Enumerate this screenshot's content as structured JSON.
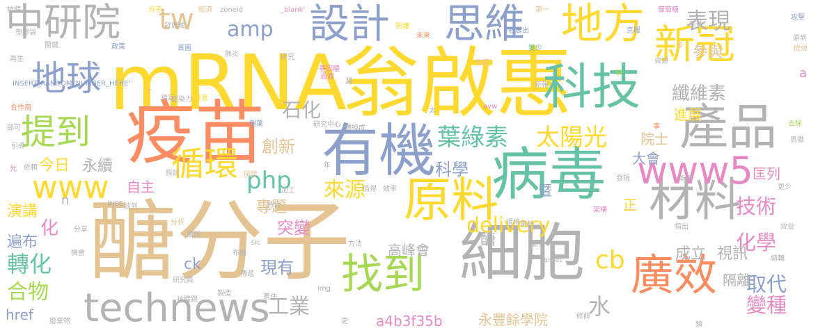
{
  "palette": {
    "peach": "#E5C494",
    "yellow": "#FFD92F",
    "green": "#A6D854",
    "teal": "#66C2A5",
    "gray": "#B3B3B3",
    "blue": "#8DA0CB",
    "pink": "#E78AC3",
    "orange": "#FC8D62"
  },
  "words": [
    {
      "text": "醣分子",
      "color": "peach"
    },
    {
      "text": "翁啟惠",
      "color": "yellow"
    },
    {
      "text": "mRNA",
      "color": "yellow"
    },
    {
      "text": "疫苗",
      "color": "orange"
    },
    {
      "text": "細胞",
      "color": "gray"
    },
    {
      "text": "有機",
      "color": "blue"
    },
    {
      "text": "病毒",
      "color": "teal"
    },
    {
      "text": "科技",
      "color": "teal"
    },
    {
      "text": "產品",
      "color": "gray"
    },
    {
      "text": "原料",
      "color": "yellow"
    },
    {
      "text": "找到",
      "color": "green"
    },
    {
      "text": "設計",
      "color": "blue"
    },
    {
      "text": "思維",
      "color": "blue"
    },
    {
      "text": "地方",
      "color": "yellow"
    },
    {
      "text": "廣效",
      "color": "orange"
    },
    {
      "text": "材料",
      "color": "gray"
    },
    {
      "text": "新冠",
      "color": "yellow"
    },
    {
      "text": "technews",
      "color": "gray"
    },
    {
      "text": "中研院",
      "color": "gray"
    },
    {
      "text": "www5",
      "color": "pink"
    },
    {
      "text": "地球",
      "color": "blue"
    },
    {
      "text": "提到",
      "color": "green"
    },
    {
      "text": "循環",
      "color": "yellow"
    },
    {
      "text": "www",
      "color": "yellow"
    },
    {
      "text": "tw",
      "color": "peach"
    },
    {
      "text": "葉綠素",
      "color": "teal"
    },
    {
      "text": "太陽光",
      "color": "yellow"
    },
    {
      "text": "表現",
      "color": "gray"
    },
    {
      "text": "石化",
      "color": "gray"
    },
    {
      "text": "纖維素",
      "color": "gray"
    },
    {
      "text": "amp",
      "color": "blue"
    },
    {
      "text": "參與",
      "color": "peach"
    },
    {
      "text": "php",
      "color": "teal"
    },
    {
      "text": "delivery",
      "color": "yellow"
    },
    {
      "text": "cb",
      "color": "yellow"
    },
    {
      "text": "技術",
      "color": "pink"
    },
    {
      "text": "化學",
      "color": "pink"
    },
    {
      "text": "取代",
      "color": "blue"
    },
    {
      "text": "變種",
      "color": "pink"
    },
    {
      "text": "工業",
      "color": "gray"
    },
    {
      "text": "水",
      "color": "gray"
    },
    {
      "text": "a4b3f35b",
      "color": "pink"
    },
    {
      "text": "永豐餘學院",
      "color": "peach"
    },
    {
      "text": "高峰會",
      "color": "gray"
    },
    {
      "text": "現有",
      "color": "blue"
    },
    {
      "text": "突變",
      "color": "pink"
    },
    {
      "text": "專題",
      "color": "peach"
    },
    {
      "text": "來源",
      "color": "yellow"
    },
    {
      "text": "自主",
      "color": "pink"
    },
    {
      "text": "創新",
      "color": "peach"
    },
    {
      "text": "科學",
      "color": "blue"
    },
    {
      "text": "轉化",
      "color": "teal"
    },
    {
      "text": "合物",
      "color": "green"
    },
    {
      "text": "遍布",
      "color": "blue"
    },
    {
      "text": "演講",
      "color": "yellow"
    },
    {
      "text": "化",
      "color": "pink"
    },
    {
      "text": "今日",
      "color": "yellow"
    },
    {
      "text": "永續",
      "color": "gray"
    },
    {
      "text": "href",
      "color": "blue"
    },
    {
      "text": "ck",
      "color": "blue"
    },
    {
      "text": "成立",
      "color": "gray"
    },
    {
      "text": "視訊",
      "color": "gray"
    },
    {
      "text": "隔離",
      "color": "gray"
    },
    {
      "text": "進展",
      "color": "yellow"
    },
    {
      "text": "院士",
      "color": "peach"
    },
    {
      "text": "大會",
      "color": "blue"
    },
    {
      "text": "匡列",
      "color": "pink"
    },
    {
      "text": "醣",
      "color": "gray"
    },
    {
      "text": "暨",
      "color": "blue"
    },
    {
      "text": "正",
      "color": "yellow"
    },
    {
      "text": "n",
      "color": "gray"
    },
    {
      "text": "a",
      "color": "pink"
    },
    {
      "text": "分子",
      "color": "yellow"
    },
    {
      "text": "經濟",
      "color": "peach"
    },
    {
      "text": "zoneid",
      "color": "gray"
    },
    {
      "text": "_blank'",
      "color": "pink"
    },
    {
      "text": "抗體",
      "color": "gray"
    },
    {
      "text": "第一",
      "color": "peach"
    },
    {
      "text": "葡萄糖",
      "color": "pink"
    },
    {
      "text": "發展成",
      "color": "gray"
    },
    {
      "text": "防護",
      "color": "yellow"
    },
    {
      "text": "未來",
      "color": "orange"
    },
    {
      "text": "發展出",
      "color": "blue"
    },
    {
      "text": "克服",
      "color": "blue"
    },
    {
      "text": "突破",
      "color": "gray"
    },
    {
      "text": "攻擊",
      "color": "blue"
    },
    {
      "text": "塑膠袋",
      "color": "gray"
    },
    {
      "text": "關鍵",
      "color": "gray"
    },
    {
      "text": "政策",
      "color": "blue"
    },
    {
      "text": "首圖",
      "color": "blue"
    },
    {
      "text": "肺炎",
      "color": "gray"
    },
    {
      "text": "步",
      "color": "peach"
    },
    {
      "text": "原到",
      "color": "gray"
    },
    {
      "text": "再生",
      "color": "gray"
    },
    {
      "text": "研究",
      "color": "gray"
    },
    {
      "text": "變少",
      "color": "teal"
    },
    {
      "text": "成效",
      "color": "peach"
    },
    {
      "text": "基因體",
      "color": "pink"
    },
    {
      "text": "資源",
      "color": "gray"
    },
    {
      "text": "角度",
      "color": "peach"
    },
    {
      "text": "過渡",
      "color": "pink"
    },
    {
      "text": "快",
      "color": "green"
    },
    {
      "text": "INSERT_RANDOM_NUMBER_HERE'",
      "color": "blue"
    },
    {
      "text": "T",
      "color": "peach"
    },
    {
      "text": "鎖定",
      "color": "gray"
    },
    {
      "text": "新報",
      "color": "gray"
    },
    {
      "text": "漏",
      "color": "gray"
    },
    {
      "text": "有普",
      "color": "yellow"
    },
    {
      "text": "感染力",
      "color": "gray"
    },
    {
      "text": "合作用",
      "color": "orange"
    },
    {
      "text": "即可",
      "color": "gray"
    },
    {
      "text": "引導",
      "color": "gray"
    },
    {
      "text": "光",
      "color": "pink"
    },
    {
      "text": "依賴",
      "color": "gray"
    },
    {
      "text": "樹葉",
      "color": "blue"
    },
    {
      "text": "研究中心",
      "color": "gray"
    },
    {
      "text": "轉換成",
      "color": "gray"
    },
    {
      "text": "太",
      "color": "gray"
    },
    {
      "text": "avw",
      "color": "pink"
    },
    {
      "text": "事",
      "color": "orange"
    },
    {
      "text": "去除",
      "color": "green"
    },
    {
      "text": "馬徽",
      "color": "gray"
    },
    {
      "text": "年",
      "color": "gray"
    },
    {
      "text": "探討",
      "color": "gray"
    },
    {
      "text": "研發",
      "color": "peach"
    },
    {
      "text": "加工",
      "color": "gray"
    },
    {
      "text": "值得",
      "color": "gray"
    },
    {
      "text": "效率",
      "color": "gray"
    },
    {
      "text": "發現",
      "color": "gray"
    },
    {
      "text": "能源",
      "color": "gray"
    },
    {
      "text": "更少",
      "color": "gray"
    },
    {
      "text": "INSE",
      "color": "gray"
    },
    {
      "text": "談到",
      "color": "gray"
    },
    {
      "text": "時代",
      "color": "gray"
    },
    {
      "text": "架構",
      "color": "pink"
    },
    {
      "text": "分析",
      "color": "peach"
    },
    {
      "text": "環境",
      "color": "gray"
    },
    {
      "text": "澱粉",
      "color": "gray"
    },
    {
      "text": "效益",
      "color": "gray"
    },
    {
      "text": "指出",
      "color": "gray"
    },
    {
      "text": "分享",
      "color": "gray"
    },
    {
      "text": "團隊",
      "color": "gray"
    },
    {
      "text": "src",
      "color": "gray"
    },
    {
      "text": "方法",
      "color": "gray"
    },
    {
      "text": "醣化",
      "color": "gray"
    },
    {
      "text": "機會",
      "color": "gray"
    },
    {
      "text": "布融",
      "color": "gray"
    },
    {
      "text": "target",
      "color": "gray"
    },
    {
      "text": "總轉",
      "color": "gray"
    },
    {
      "text": "研究員",
      "color": "gray"
    },
    {
      "text": "傳遞",
      "color": "gray"
    },
    {
      "text": "製造",
      "color": "gray"
    },
    {
      "text": "img",
      "color": "gray"
    },
    {
      "text": "蓋住",
      "color": "gray"
    },
    {
      "text": "抗體跟",
      "color": "gray"
    },
    {
      "text": "廢棄物",
      "color": "gray"
    },
    {
      "text": "更",
      "color": "gray"
    },
    {
      "text": "修飾",
      "color": "gray"
    },
    {
      "text": "類",
      "color": "gray"
    }
  ]
}
